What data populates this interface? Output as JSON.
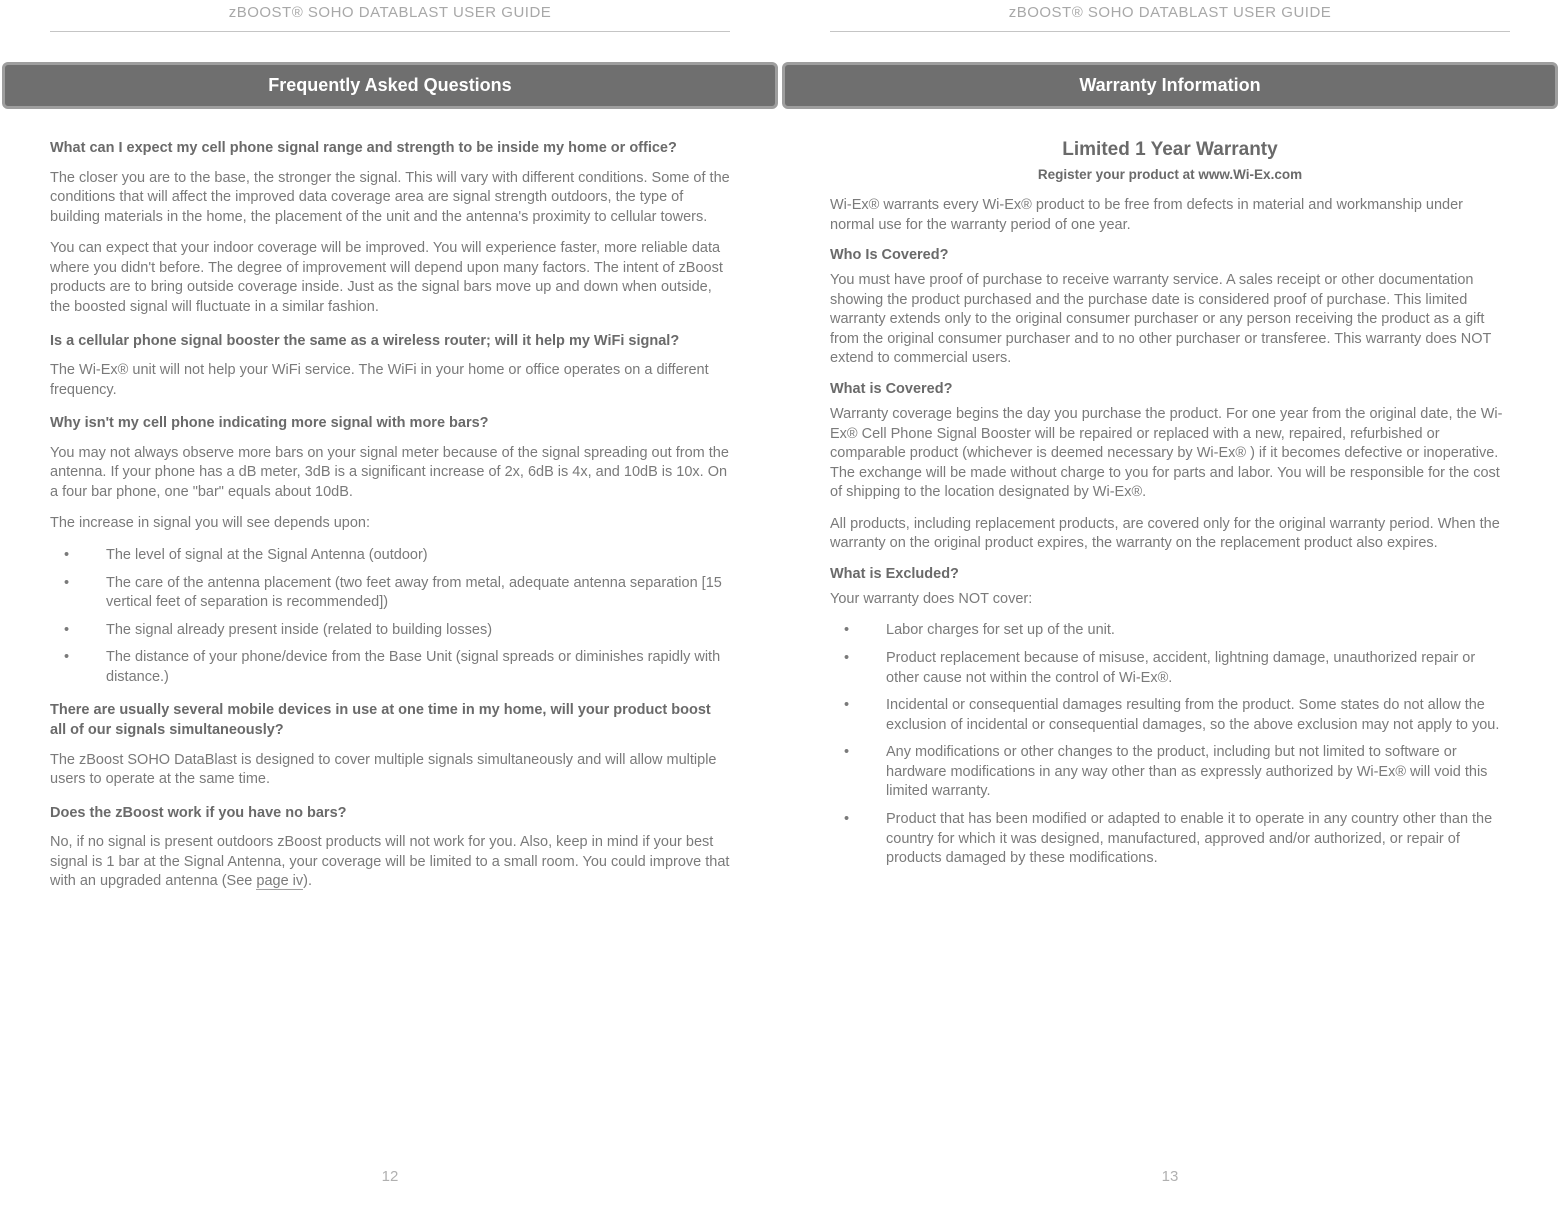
{
  "colors": {
    "text": "#7a7a7a",
    "heading": "#6a6a6a",
    "header_text": "#a8a8a8",
    "box_bg": "#6f6f6f",
    "box_border": "#9e9e9e",
    "rule": "#c5c5c5",
    "pagenum": "#b0b0b0"
  },
  "left": {
    "header": "zBOOST® SOHO DATABLAST USER GUIDE",
    "section_title": "Frequently Asked Questions",
    "q1": "What can I expect my cell phone signal range and strength to be inside my home or office?",
    "p1": "The closer you are to the base, the stronger the signal. This will vary with different conditions. Some of the conditions that will affect the improved data coverage area are signal strength outdoors, the type of building materials in the home, the placement of the unit and the antenna's proximity to cellular towers.",
    "p2": "You can expect that your indoor coverage will be improved. You will experience faster, more reliable data where you didn't before. The degree of improvement will depend upon many factors. The intent of zBoost products are to bring outside coverage inside. Just as the signal bars move up and down when outside, the boosted signal will fluctuate in a similar fashion.",
    "q2": "Is a cellular phone signal booster the same as a wireless router; will it help my WiFi signal?",
    "p3": "The Wi-Ex® unit will not help your WiFi service. The WiFi in your home or office operates on a different frequency.",
    "q3": "Why isn't my cell phone indicating more signal with more bars?",
    "p4": "You may not always observe more bars on your signal meter because of the signal spreading out from the antenna. If your phone has a dB meter, 3dB is a significant increase of 2x, 6dB is 4x, and 10dB is 10x. On a four bar phone, one \"bar\" equals about 10dB.",
    "p5": "The increase in signal you will see depends upon:",
    "bullets1": [
      "The level of signal at the Signal Antenna (outdoor)",
      "The care of the antenna placement (two feet away from metal, adequate antenna separation [15 vertical feet of separation is recommended])",
      "The signal already present inside (related to building losses)",
      "The distance of your phone/device from the Base Unit (signal spreads or diminishes rapidly with distance.)"
    ],
    "q4": "There are usually several mobile devices in use at one time in my home, will your product boost all of our signals simultaneously?",
    "p6": "The zBoost SOHO DataBlast is designed to cover multiple signals simultaneously and will allow multiple users to operate at the same time.",
    "q5": "Does the zBoost work if you have no bars?",
    "p7a": "No, if no signal is present outdoors zBoost products will not work for you. Also, keep in mind if your best signal is 1 bar at the Signal Antenna, your coverage will be limited to a small room. You could improve that with an upgraded antenna (See ",
    "p7_link": "page iv",
    "p7b": ").",
    "page_num": "12"
  },
  "right": {
    "header": "zBOOST® SOHO DATABLAST USER GUIDE",
    "section_title": "Warranty Information",
    "sub_title": "Limited 1 Year Warranty",
    "register": "Register your product at www.Wi-Ex.com",
    "p1": "Wi-Ex® warrants every Wi-Ex® product to be free from defects in material and workmanship under normal use for the warranty period of one year.",
    "h1": "Who Is Covered?",
    "p2": "You must have proof of purchase to receive warranty service. A sales receipt or other documentation showing the product purchased and the purchase date is considered proof of purchase. This limited warranty extends only to the original consumer purchaser or any person receiving the product as a gift from the original consumer purchaser and to no other purchaser or transferee. This warranty does NOT extend to commercial users.",
    "h2": "What is Covered?",
    "p3": "Warranty coverage begins the day you purchase the product. For one year from the original date, the Wi-Ex®  Cell Phone Signal Booster will be repaired or replaced with a new, repaired, refurbished or comparable product (whichever is deemed necessary by Wi-Ex® ) if it becomes defective or inoperative. The exchange will be made without charge to you for parts and labor. You will be responsible for the cost of shipping to the location designated by Wi-Ex®.",
    "p4": "All products, including replacement products, are covered only for the original warranty period. When the warranty on the original product expires, the warranty on the replacement product also expires.",
    "h3": "What is Excluded?",
    "p5": "Your warranty does NOT cover:",
    "bullets1": [
      "Labor charges for set up of the unit.",
      "Product replacement because of misuse, accident, lightning damage, unauthorized repair or other cause not within the control of Wi-Ex®.",
      "Incidental or consequential damages resulting from the product. Some states do not allow the exclusion of incidental or consequential damages, so the above exclusion may not apply to you.",
      "Any modifications or other changes to the product, including but not limited to software or hardware modifications in any way other than as expressly authorized by Wi-Ex®  will void this limited warranty.",
      "Product that has been modified or adapted to enable it to operate in any country other than the country for which it was designed, manufactured, approved and/or authorized, or repair of products damaged by these modifications."
    ],
    "page_num": "13"
  }
}
